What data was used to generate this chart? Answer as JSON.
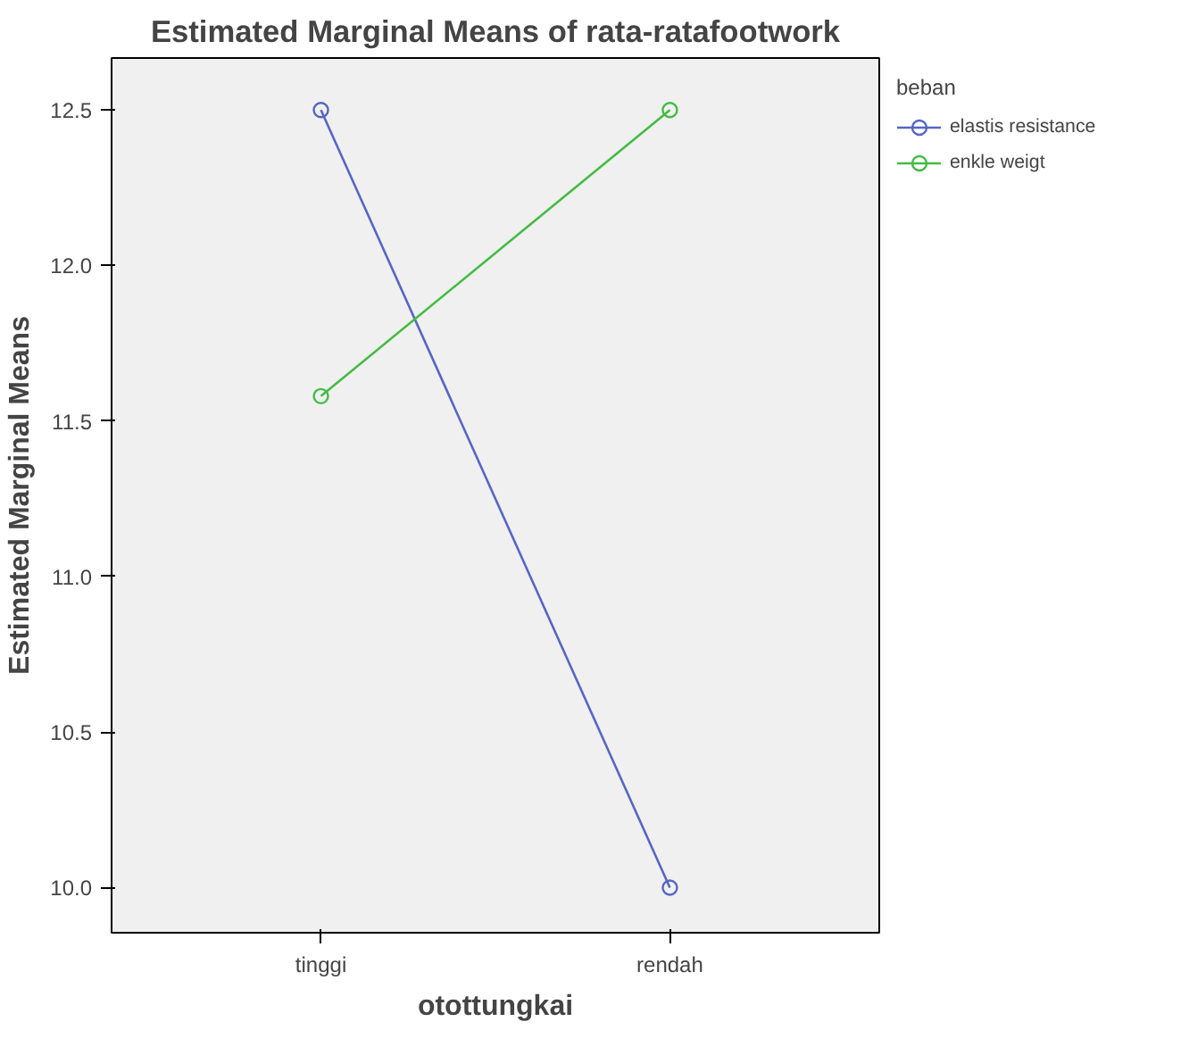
{
  "chart_data": {
    "type": "line",
    "title": "Estimated Marginal Means of rata-ratafootwork",
    "xlabel": "otottungkai",
    "ylabel": "Estimated Marginal Means",
    "legend_title": "beban",
    "categories": [
      "tinggi",
      "rendah"
    ],
    "series": [
      {
        "name": "elastis resistance",
        "color": "#5566c4",
        "values": [
          12.5,
          10.0
        ]
      },
      {
        "name": "enkle weigt",
        "color": "#44bb44",
        "values": [
          11.58,
          12.5
        ]
      }
    ],
    "ylim": [
      9.855,
      12.667
    ],
    "yticks": [
      {
        "value": 10.0,
        "label": "10.0"
      },
      {
        "value": 10.5,
        "label": "10.5"
      },
      {
        "value": 11.0,
        "label": "11.0"
      },
      {
        "value": 11.5,
        "label": "11.5"
      },
      {
        "value": 12.0,
        "label": "12.0"
      },
      {
        "value": 12.5,
        "label": "12.5"
      }
    ],
    "legend": "top right",
    "marker": "circle",
    "line_style": "solid",
    "grid": false
  }
}
